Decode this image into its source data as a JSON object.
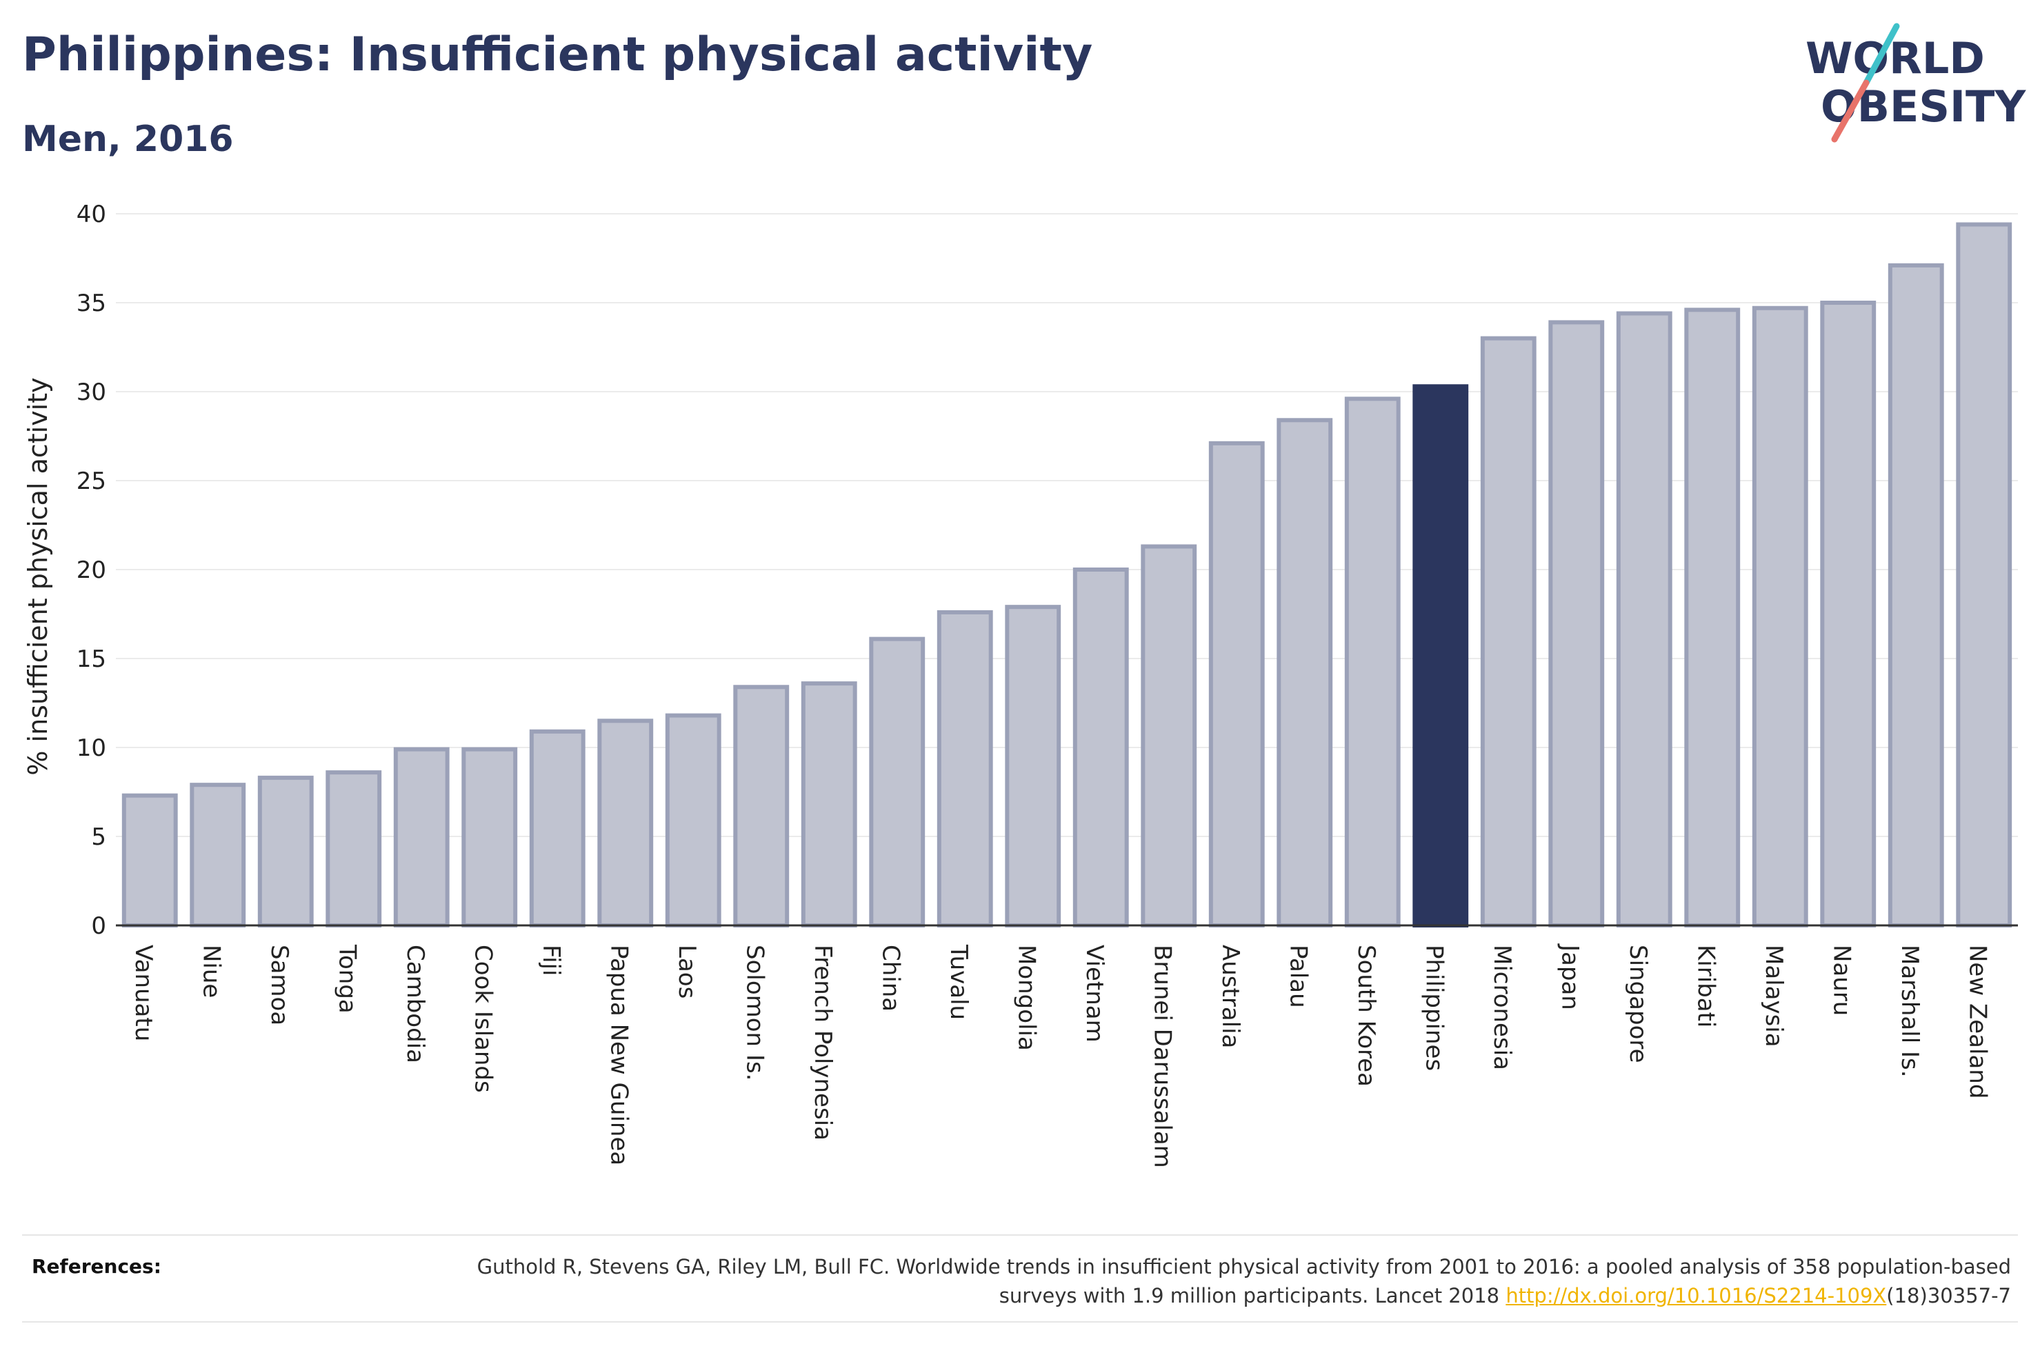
{
  "header": {
    "title": "Philippines: Insufficient physical activity",
    "subtitle": "Men, 2016"
  },
  "logo": {
    "line1": "WORLD",
    "line2": "OBESITY"
  },
  "references": {
    "label": "References:",
    "text_before_link": "Guthold R, Stevens GA, Riley LM, Bull FC. Worldwide trends in insufficient physical activity from 2001 to 2016: a pooled analysis of 358 population-based surveys with 1.9 million participants. Lancet 2018 ",
    "link": "http://dx.doi.org/10.1016/S2214-109X",
    "text_after_link": "(18)30357-7"
  },
  "colors": {
    "highlight": "#2b365e",
    "bar_fill": "#c0c3d0",
    "bar_stroke": "#9ba1b8",
    "grid": "#ebebeb",
    "axis": "#333333",
    "link": "#f0b400"
  },
  "chart_data": {
    "type": "bar",
    "title": "Philippines: Insufficient physical activity",
    "subtitle": "Men, 2016",
    "xlabel": "",
    "ylabel": "% insufficient physical activity",
    "ylim": [
      0,
      40
    ],
    "yticks": [
      0,
      5,
      10,
      15,
      20,
      25,
      30,
      35,
      40
    ],
    "grid": true,
    "highlight": "Philippines",
    "categories": [
      "Vanuatu",
      "Niue",
      "Samoa",
      "Tonga",
      "Cambodia",
      "Cook Islands",
      "Fiji",
      "Papua New Guinea",
      "Laos",
      "Solomon Is.",
      "French Polynesia",
      "China",
      "Tuvalu",
      "Mongolia",
      "Vietnam",
      "Brunei Darussalam",
      "Australia",
      "Palau",
      "South Korea",
      "Philippines",
      "Micronesia",
      "Japan",
      "Singapore",
      "Kiribati",
      "Malaysia",
      "Nauru",
      "Marshall Is.",
      "New Zealand"
    ],
    "values": [
      7.3,
      7.9,
      8.3,
      8.6,
      9.9,
      9.9,
      10.9,
      11.5,
      11.8,
      13.4,
      13.6,
      16.1,
      17.6,
      17.9,
      20.0,
      21.3,
      27.1,
      28.4,
      29.6,
      30.3,
      33.0,
      33.9,
      34.4,
      34.6,
      34.7,
      35.0,
      37.1,
      39.4
    ]
  }
}
